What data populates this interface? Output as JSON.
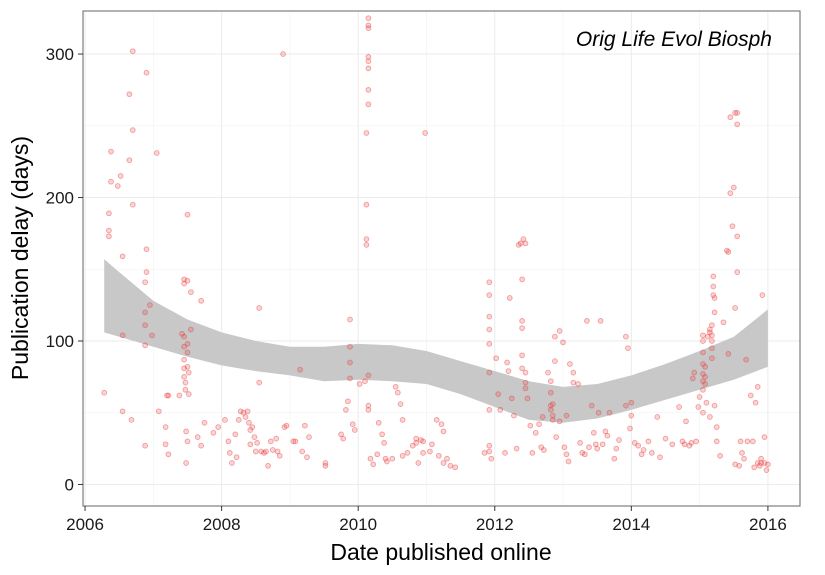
{
  "chart_data": {
    "type": "scatter",
    "title": "",
    "annotation": "Orig Life Evol Biosph",
    "xlabel": "Date published online",
    "ylabel": "Publication delay (days)",
    "xlim": [
      2005.97,
      2016.47
    ],
    "ylim": [
      -15,
      330
    ],
    "x_ticks": [
      2006,
      2008,
      2010,
      2012,
      2014,
      2016
    ],
    "x_tick_labels": [
      "2006",
      "2008",
      "2010",
      "2012",
      "2014",
      "2016"
    ],
    "y_ticks": [
      0,
      100,
      200,
      300
    ],
    "y_tick_labels": [
      "0",
      "100",
      "200",
      "300"
    ],
    "grid": true,
    "legend": "none",
    "colors": {
      "points": "#e8393a",
      "ribbon": "#c8c8c8",
      "grid_major": "#ebebeb",
      "grid_minor": "#f4f4f4",
      "axis_border": "#7f7f7f"
    },
    "points": [
      [
        2006.28,
        64
      ],
      [
        2006.38,
        232
      ],
      [
        2006.38,
        211
      ],
      [
        2006.35,
        189
      ],
      [
        2006.35,
        177
      ],
      [
        2006.35,
        173
      ],
      [
        2006.48,
        208
      ],
      [
        2006.52,
        215
      ],
      [
        2006.55,
        159
      ],
      [
        2006.55,
        104
      ],
      [
        2006.55,
        51
      ],
      [
        2006.65,
        272
      ],
      [
        2006.65,
        226
      ],
      [
        2006.68,
        45
      ],
      [
        2006.7,
        302
      ],
      [
        2006.7,
        247
      ],
      [
        2006.7,
        195
      ],
      [
        2006.9,
        287
      ],
      [
        2006.9,
        164
      ],
      [
        2006.9,
        148
      ],
      [
        2006.88,
        141
      ],
      [
        2006.88,
        120
      ],
      [
        2006.88,
        111
      ],
      [
        2006.88,
        97
      ],
      [
        2006.88,
        27
      ],
      [
        2006.95,
        125
      ],
      [
        2006.98,
        104
      ],
      [
        2007.05,
        231
      ],
      [
        2007.08,
        51
      ],
      [
        2007.18,
        40
      ],
      [
        2007.18,
        28
      ],
      [
        2007.2,
        62
      ],
      [
        2007.22,
        62
      ],
      [
        2007.22,
        21
      ],
      [
        2007.38,
        62
      ],
      [
        2007.42,
        105
      ],
      [
        2007.45,
        143
      ],
      [
        2007.45,
        140
      ],
      [
        2007.45,
        103
      ],
      [
        2007.45,
        96
      ],
      [
        2007.45,
        87
      ],
      [
        2007.45,
        81
      ],
      [
        2007.45,
        75
      ],
      [
        2007.47,
        71
      ],
      [
        2007.47,
        66
      ],
      [
        2007.5,
        188
      ],
      [
        2007.5,
        142
      ],
      [
        2007.5,
        98
      ],
      [
        2007.5,
        92
      ],
      [
        2007.5,
        82
      ],
      [
        2007.52,
        78
      ],
      [
        2007.52,
        63
      ],
      [
        2007.55,
        134
      ],
      [
        2007.55,
        108
      ],
      [
        2007.48,
        37
      ],
      [
        2007.5,
        30
      ],
      [
        2007.48,
        15
      ],
      [
        2007.65,
        33
      ],
      [
        2007.7,
        128
      ],
      [
        2007.7,
        27
      ],
      [
        2007.75,
        43
      ],
      [
        2007.88,
        36
      ],
      [
        2007.95,
        40
      ],
      [
        2008.05,
        45
      ],
      [
        2008.1,
        30
      ],
      [
        2008.12,
        22
      ],
      [
        2008.15,
        15
      ],
      [
        2008.2,
        35
      ],
      [
        2008.22,
        19
      ],
      [
        2008.25,
        45
      ],
      [
        2008.28,
        51
      ],
      [
        2008.32,
        50
      ],
      [
        2008.35,
        47
      ],
      [
        2008.38,
        51
      ],
      [
        2008.4,
        43
      ],
      [
        2008.42,
        38
      ],
      [
        2008.42,
        28
      ],
      [
        2008.45,
        40
      ],
      [
        2008.48,
        33
      ],
      [
        2008.5,
        23
      ],
      [
        2008.52,
        29
      ],
      [
        2008.55,
        71
      ],
      [
        2008.55,
        123
      ],
      [
        2008.58,
        23
      ],
      [
        2008.62,
        22
      ],
      [
        2008.65,
        23
      ],
      [
        2008.68,
        13
      ],
      [
        2008.72,
        30
      ],
      [
        2008.75,
        24
      ],
      [
        2008.8,
        32
      ],
      [
        2008.82,
        23
      ],
      [
        2008.85,
        20
      ],
      [
        2008.9,
        300
      ],
      [
        2008.92,
        40
      ],
      [
        2008.95,
        41
      ],
      [
        2009.05,
        30
      ],
      [
        2009.08,
        30
      ],
      [
        2009.15,
        80
      ],
      [
        2009.18,
        23
      ],
      [
        2009.22,
        41
      ],
      [
        2009.25,
        19
      ],
      [
        2009.28,
        33
      ],
      [
        2009.52,
        15
      ],
      [
        2009.52,
        13
      ],
      [
        2009.75,
        35
      ],
      [
        2009.78,
        32
      ],
      [
        2009.82,
        52
      ],
      [
        2009.85,
        58
      ],
      [
        2009.88,
        115
      ],
      [
        2009.88,
        96
      ],
      [
        2009.88,
        85
      ],
      [
        2009.88,
        74
      ],
      [
        2009.92,
        42
      ],
      [
        2009.95,
        38
      ],
      [
        2010.02,
        70
      ],
      [
        2010.1,
        72
      ],
      [
        2010.12,
        245
      ],
      [
        2010.12,
        195
      ],
      [
        2010.12,
        171
      ],
      [
        2010.12,
        167
      ],
      [
        2010.15,
        325
      ],
      [
        2010.15,
        320
      ],
      [
        2010.15,
        318
      ],
      [
        2010.15,
        298
      ],
      [
        2010.15,
        295
      ],
      [
        2010.15,
        290
      ],
      [
        2010.15,
        275
      ],
      [
        2010.15,
        265
      ],
      [
        2010.15,
        76
      ],
      [
        2010.15,
        55
      ],
      [
        2010.15,
        52
      ],
      [
        2010.18,
        18
      ],
      [
        2010.22,
        14
      ],
      [
        2010.28,
        21
      ],
      [
        2010.3,
        43
      ],
      [
        2010.35,
        35
      ],
      [
        2010.38,
        29
      ],
      [
        2010.4,
        18
      ],
      [
        2010.42,
        16
      ],
      [
        2010.5,
        18
      ],
      [
        2010.55,
        68
      ],
      [
        2010.58,
        64
      ],
      [
        2010.62,
        56
      ],
      [
        2010.65,
        45
      ],
      [
        2010.65,
        20
      ],
      [
        2010.72,
        22
      ],
      [
        2010.8,
        27
      ],
      [
        2010.85,
        32
      ],
      [
        2010.85,
        29
      ],
      [
        2010.88,
        15
      ],
      [
        2010.92,
        31
      ],
      [
        2010.95,
        30
      ],
      [
        2010.95,
        22
      ],
      [
        2010.98,
        245
      ],
      [
        2011.05,
        23
      ],
      [
        2011.08,
        28
      ],
      [
        2011.15,
        45
      ],
      [
        2011.18,
        20
      ],
      [
        2011.22,
        42
      ],
      [
        2011.25,
        37
      ],
      [
        2011.25,
        15
      ],
      [
        2011.3,
        18
      ],
      [
        2011.35,
        13
      ],
      [
        2011.42,
        12
      ],
      [
        2011.85,
        22
      ],
      [
        2011.92,
        141
      ],
      [
        2011.92,
        132
      ],
      [
        2011.92,
        117
      ],
      [
        2011.92,
        108
      ],
      [
        2011.92,
        98
      ],
      [
        2011.92,
        78
      ],
      [
        2011.92,
        52
      ],
      [
        2011.92,
        27
      ],
      [
        2011.92,
        23
      ],
      [
        2011.95,
        18
      ],
      [
        2012.02,
        88
      ],
      [
        2012.05,
        63
      ],
      [
        2012.08,
        52
      ],
      [
        2012.15,
        22
      ],
      [
        2012.18,
        85
      ],
      [
        2012.2,
        79
      ],
      [
        2012.22,
        130
      ],
      [
        2012.25,
        60
      ],
      [
        2012.28,
        48
      ],
      [
        2012.32,
        25
      ],
      [
        2012.35,
        167
      ],
      [
        2012.38,
        168
      ],
      [
        2012.4,
        143
      ],
      [
        2012.4,
        114
      ],
      [
        2012.4,
        109
      ],
      [
        2012.4,
        90
      ],
      [
        2012.4,
        81
      ],
      [
        2012.42,
        171
      ],
      [
        2012.45,
        168
      ],
      [
        2012.45,
        78
      ],
      [
        2012.45,
        71
      ],
      [
        2012.45,
        67
      ],
      [
        2012.48,
        60
      ],
      [
        2012.52,
        41
      ],
      [
        2012.55,
        22
      ],
      [
        2012.6,
        36
      ],
      [
        2012.65,
        42
      ],
      [
        2012.68,
        26
      ],
      [
        2012.7,
        47
      ],
      [
        2012.72,
        24
      ],
      [
        2012.78,
        78
      ],
      [
        2012.82,
        72
      ],
      [
        2012.82,
        64
      ],
      [
        2012.82,
        55
      ],
      [
        2012.82,
        52
      ],
      [
        2012.85,
        56
      ],
      [
        2012.85,
        48
      ],
      [
        2012.85,
        45
      ],
      [
        2012.88,
        103
      ],
      [
        2012.88,
        86
      ],
      [
        2012.9,
        33
      ],
      [
        2012.95,
        44
      ],
      [
        2012.95,
        107
      ],
      [
        2013.0,
        99
      ],
      [
        2013.02,
        26
      ],
      [
        2013.05,
        21
      ],
      [
        2013.05,
        48
      ],
      [
        2013.08,
        16
      ],
      [
        2013.1,
        84
      ],
      [
        2013.15,
        78
      ],
      [
        2013.15,
        71
      ],
      [
        2013.22,
        70
      ],
      [
        2013.25,
        29
      ],
      [
        2013.28,
        22
      ],
      [
        2013.32,
        21
      ],
      [
        2013.35,
        114
      ],
      [
        2013.38,
        26
      ],
      [
        2013.42,
        55
      ],
      [
        2013.45,
        36
      ],
      [
        2013.48,
        28
      ],
      [
        2013.5,
        25
      ],
      [
        2013.52,
        50
      ],
      [
        2013.55,
        114
      ],
      [
        2013.58,
        28
      ],
      [
        2013.62,
        37
      ],
      [
        2013.65,
        34
      ],
      [
        2013.68,
        50
      ],
      [
        2013.75,
        18
      ],
      [
        2013.78,
        25
      ],
      [
        2013.82,
        31
      ],
      [
        2013.92,
        103
      ],
      [
        2013.92,
        55
      ],
      [
        2013.95,
        95
      ],
      [
        2013.98,
        39
      ],
      [
        2014.0,
        57
      ],
      [
        2014.0,
        48
      ],
      [
        2014.05,
        29
      ],
      [
        2014.1,
        27
      ],
      [
        2014.15,
        21
      ],
      [
        2014.18,
        24
      ],
      [
        2014.25,
        30
      ],
      [
        2014.3,
        22
      ],
      [
        2014.38,
        47
      ],
      [
        2014.42,
        19
      ],
      [
        2014.5,
        32
      ],
      [
        2014.6,
        28
      ],
      [
        2014.7,
        54
      ],
      [
        2014.75,
        30
      ],
      [
        2014.78,
        28
      ],
      [
        2014.8,
        44
      ],
      [
        2014.85,
        27
      ],
      [
        2014.88,
        29
      ],
      [
        2014.9,
        74
      ],
      [
        2014.92,
        78
      ],
      [
        2014.95,
        30
      ],
      [
        2014.98,
        54
      ],
      [
        2015.0,
        61
      ],
      [
        2015.05,
        104
      ],
      [
        2015.05,
        100
      ],
      [
        2015.05,
        92
      ],
      [
        2015.05,
        84
      ],
      [
        2015.05,
        77
      ],
      [
        2015.05,
        72
      ],
      [
        2015.05,
        66
      ],
      [
        2015.05,
        50
      ],
      [
        2015.08,
        82
      ],
      [
        2015.08,
        75
      ],
      [
        2015.08,
        70
      ],
      [
        2015.1,
        57
      ],
      [
        2015.12,
        103
      ],
      [
        2015.15,
        108
      ],
      [
        2015.15,
        106
      ],
      [
        2015.15,
        47
      ],
      [
        2015.18,
        111
      ],
      [
        2015.18,
        104
      ],
      [
        2015.18,
        100
      ],
      [
        2015.18,
        95
      ],
      [
        2015.18,
        88
      ],
      [
        2015.2,
        145
      ],
      [
        2015.2,
        138
      ],
      [
        2015.2,
        132
      ],
      [
        2015.22,
        130
      ],
      [
        2015.22,
        120
      ],
      [
        2015.22,
        55
      ],
      [
        2015.25,
        40
      ],
      [
        2015.25,
        30
      ],
      [
        2015.3,
        20
      ],
      [
        2015.35,
        113
      ],
      [
        2015.4,
        163
      ],
      [
        2015.42,
        162
      ],
      [
        2015.42,
        91
      ],
      [
        2015.45,
        256
      ],
      [
        2015.45,
        203
      ],
      [
        2015.48,
        180
      ],
      [
        2015.5,
        207
      ],
      [
        2015.52,
        259
      ],
      [
        2015.52,
        123
      ],
      [
        2015.52,
        14
      ],
      [
        2015.55,
        259
      ],
      [
        2015.55,
        251
      ],
      [
        2015.55,
        173
      ],
      [
        2015.55,
        148
      ],
      [
        2015.58,
        13
      ],
      [
        2015.6,
        30
      ],
      [
        2015.62,
        22
      ],
      [
        2015.65,
        18
      ],
      [
        2015.68,
        87
      ],
      [
        2015.7,
        30
      ],
      [
        2015.75,
        62
      ],
      [
        2015.78,
        30
      ],
      [
        2015.8,
        12
      ],
      [
        2015.82,
        57
      ],
      [
        2015.85,
        68
      ],
      [
        2015.85,
        15
      ],
      [
        2015.88,
        13
      ],
      [
        2015.9,
        18
      ],
      [
        2015.9,
        15
      ],
      [
        2015.92,
        132
      ],
      [
        2015.95,
        33
      ],
      [
        2015.95,
        15
      ],
      [
        2015.98,
        10
      ],
      [
        2016.0,
        14
      ]
    ],
    "smooth_band": {
      "x": [
        2006.28,
        2006.5,
        2007.0,
        2007.5,
        2008.0,
        2008.5,
        2009.0,
        2009.5,
        2010.0,
        2010.5,
        2011.0,
        2011.5,
        2012.0,
        2012.5,
        2013.0,
        2013.5,
        2014.0,
        2014.5,
        2015.0,
        2015.5,
        2016.0
      ],
      "upper": [
        157,
        148,
        128,
        115,
        106,
        100,
        96,
        96,
        98,
        97,
        93,
        86,
        79,
        72,
        68,
        70,
        76,
        84,
        93,
        103,
        122
      ],
      "lower": [
        106,
        103,
        96,
        89,
        83,
        79,
        76,
        72,
        73,
        72,
        70,
        63,
        54,
        45,
        43,
        46,
        52,
        59,
        66,
        73,
        82
      ]
    }
  }
}
